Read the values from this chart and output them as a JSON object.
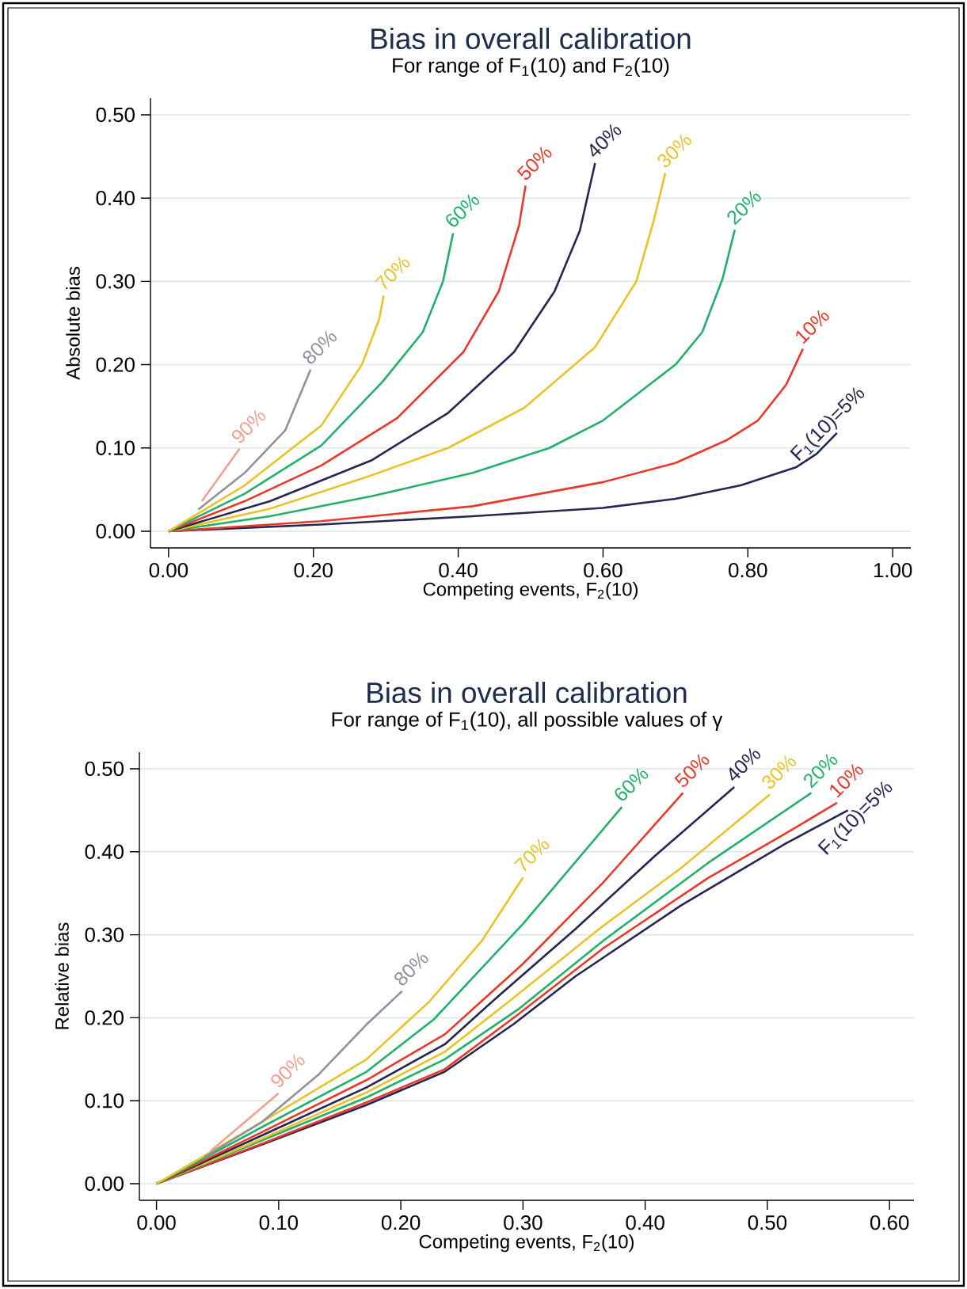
{
  "chart_data": [
    {
      "type": "line",
      "title": "Bias in overall calibration",
      "subtitle": "For range of F$_{1}$(10) and F$_{2}$(10)",
      "xlabel": "Competing events, F$_{2}$(10)",
      "ylabel": "Absolute bias",
      "xlim": [
        -0.025,
        1.025
      ],
      "ylim": [
        -0.02,
        0.52
      ],
      "xticks": [
        {
          "value": 0,
          "label": "0.00"
        },
        {
          "value": 0.2,
          "label": "0.20"
        },
        {
          "value": 0.4,
          "label": "0.40"
        },
        {
          "value": 0.6,
          "label": "0.60"
        },
        {
          "value": 0.8,
          "label": "0.80"
        },
        {
          "value": 1,
          "label": "1.00"
        }
      ],
      "yticks": [
        {
          "value": 0,
          "label": "0.00"
        },
        {
          "value": 0.1,
          "label": "0.10"
        },
        {
          "value": 0.2,
          "label": "0.20"
        },
        {
          "value": 0.3,
          "label": "0.30"
        },
        {
          "value": 0.4,
          "label": "0.40"
        },
        {
          "value": 0.5,
          "label": "0.50"
        }
      ],
      "grid": "y",
      "marker": "none",
      "line_style": "solid",
      "series": [
        {
          "name": "F$_{1}$(10)=5%",
          "color": "#262650",
          "x": [
            0,
            0.21,
            0.42,
            0.6,
            0.7,
            0.79,
            0.867,
            0.895,
            0.923
          ],
          "values": [
            0,
            0.008,
            0.018,
            0.028,
            0.039,
            0.055,
            0.077,
            0.093,
            0.118
          ]
        },
        {
          "name": "10%",
          "color": "#e8392a",
          "x": [
            0,
            0.21,
            0.42,
            0.6,
            0.7,
            0.77,
            0.814,
            0.853,
            0.876
          ],
          "values": [
            0,
            0.012,
            0.03,
            0.059,
            0.082,
            0.109,
            0.133,
            0.176,
            0.219
          ]
        },
        {
          "name": "20%",
          "color": "#22b06a",
          "x": [
            0,
            0.14,
            0.28,
            0.42,
            0.526,
            0.6,
            0.7,
            0.737,
            0.765,
            0.782
          ],
          "values": [
            0,
            0.018,
            0.042,
            0.07,
            0.1,
            0.133,
            0.2,
            0.239,
            0.303,
            0.362
          ]
        },
        {
          "name": "30%",
          "color": "#e8c32a",
          "x": [
            0,
            0.14,
            0.28,
            0.386,
            0.491,
            0.589,
            0.646,
            0.67,
            0.686
          ],
          "values": [
            0,
            0.027,
            0.067,
            0.1,
            0.148,
            0.221,
            0.3,
            0.373,
            0.43
          ]
        },
        {
          "name": "40%",
          "color": "#262650",
          "x": [
            0,
            0.14,
            0.28,
            0.386,
            0.477,
            0.533,
            0.568,
            0.589
          ],
          "values": [
            0,
            0.036,
            0.085,
            0.142,
            0.215,
            0.288,
            0.361,
            0.442
          ]
        },
        {
          "name": "50%",
          "color": "#e8392a",
          "x": [
            0,
            0.105,
            0.211,
            0.316,
            0.407,
            0.456,
            0.484,
            0.493
          ],
          "values": [
            0,
            0.036,
            0.079,
            0.136,
            0.215,
            0.288,
            0.367,
            0.415
          ]
        },
        {
          "name": "60%",
          "color": "#22b06a",
          "x": [
            0,
            0.105,
            0.211,
            0.295,
            0.351,
            0.379,
            0.393
          ],
          "values": [
            0,
            0.045,
            0.103,
            0.179,
            0.239,
            0.3,
            0.358
          ]
        },
        {
          "name": "70%",
          "color": "#e8c32a",
          "x": [
            0,
            0.105,
            0.211,
            0.267,
            0.291,
            0.297
          ],
          "values": [
            0,
            0.055,
            0.127,
            0.2,
            0.255,
            0.283
          ]
        },
        {
          "name": "80%",
          "color": "#9090a0",
          "x": [
            0.041,
            0.105,
            0.161,
            0.196
          ],
          "values": [
            0.026,
            0.07,
            0.121,
            0.194
          ]
        },
        {
          "name": "90%",
          "color": "#f0a090",
          "x": [
            0.046,
            0.098
          ],
          "values": [
            0.036,
            0.099
          ]
        }
      ]
    },
    {
      "type": "line",
      "title": "Bias in overall calibration",
      "subtitle": "For range of F$_{1}$(10), all possible values of γ",
      "xlabel": "Competing events, F$_{2}$(10)",
      "ylabel": "Relative bias",
      "xlim": [
        -0.014,
        0.62
      ],
      "ylim": [
        -0.02,
        0.52
      ],
      "xticks": [
        {
          "value": 0,
          "label": "0.00"
        },
        {
          "value": 0.1,
          "label": "0.10"
        },
        {
          "value": 0.2,
          "label": "0.20"
        },
        {
          "value": 0.3,
          "label": "0.30"
        },
        {
          "value": 0.4,
          "label": "0.40"
        },
        {
          "value": 0.5,
          "label": "0.50"
        },
        {
          "value": 0.6,
          "label": "0.60"
        }
      ],
      "yticks": [
        {
          "value": 0,
          "label": "0.00"
        },
        {
          "value": 0.1,
          "label": "0.10"
        },
        {
          "value": 0.2,
          "label": "0.20"
        },
        {
          "value": 0.3,
          "label": "0.30"
        },
        {
          "value": 0.4,
          "label": "0.40"
        },
        {
          "value": 0.5,
          "label": "0.50"
        }
      ],
      "grid": "y",
      "marker": "none",
      "line_style": "solid",
      "series": [
        {
          "name": "F$_{1}$(10)=5%",
          "color": "#262650",
          "x": [
            0,
            0.086,
            0.172,
            0.236,
            0.292,
            0.343,
            0.429,
            0.515,
            0.566
          ],
          "values": [
            0,
            0.047,
            0.095,
            0.135,
            0.192,
            0.25,
            0.335,
            0.41,
            0.45
          ]
        },
        {
          "name": "10%",
          "color": "#e8392a",
          "x": [
            0,
            0.086,
            0.172,
            0.236,
            0.296,
            0.365,
            0.451,
            0.515,
            0.557
          ],
          "values": [
            0,
            0.048,
            0.098,
            0.138,
            0.204,
            0.283,
            0.368,
            0.422,
            0.459
          ]
        },
        {
          "name": "20%",
          "color": "#22b06a",
          "x": [
            0,
            0.086,
            0.172,
            0.236,
            0.296,
            0.365,
            0.451,
            0.536
          ],
          "values": [
            0,
            0.052,
            0.104,
            0.15,
            0.21,
            0.292,
            0.386,
            0.471
          ]
        },
        {
          "name": "30%",
          "color": "#e8c32a",
          "x": [
            0,
            0.086,
            0.172,
            0.236,
            0.288,
            0.365,
            0.429,
            0.502
          ],
          "values": [
            0,
            0.054,
            0.11,
            0.159,
            0.219,
            0.31,
            0.38,
            0.469
          ]
        },
        {
          "name": "40%",
          "color": "#262650",
          "x": [
            0,
            0.086,
            0.172,
            0.236,
            0.279,
            0.343,
            0.408,
            0.473
          ],
          "values": [
            0,
            0.058,
            0.116,
            0.168,
            0.225,
            0.307,
            0.395,
            0.478
          ]
        },
        {
          "name": "50%",
          "color": "#e8392a",
          "x": [
            0,
            0.086,
            0.172,
            0.236,
            0.3,
            0.365,
            0.431
          ],
          "values": [
            0,
            0.062,
            0.125,
            0.18,
            0.265,
            0.362,
            0.471
          ]
        },
        {
          "name": "60%",
          "color": "#22b06a",
          "x": [
            0,
            0.086,
            0.172,
            0.227,
            0.3,
            0.381
          ],
          "values": [
            0,
            0.068,
            0.135,
            0.198,
            0.313,
            0.454
          ]
        },
        {
          "name": "70%",
          "color": "#e8c32a",
          "x": [
            0,
            0.086,
            0.172,
            0.223,
            0.266,
            0.3
          ],
          "values": [
            0,
            0.074,
            0.15,
            0.219,
            0.292,
            0.369
          ]
        },
        {
          "name": "80%",
          "color": "#9090a0",
          "x": [
            0.039,
            0.086,
            0.133,
            0.172,
            0.201
          ],
          "values": [
            0.032,
            0.074,
            0.132,
            0.192,
            0.232
          ]
        },
        {
          "name": "90%",
          "color": "#f0a090",
          "x": [
            0.044,
            0.1
          ],
          "values": [
            0.039,
            0.109
          ]
        }
      ]
    }
  ]
}
